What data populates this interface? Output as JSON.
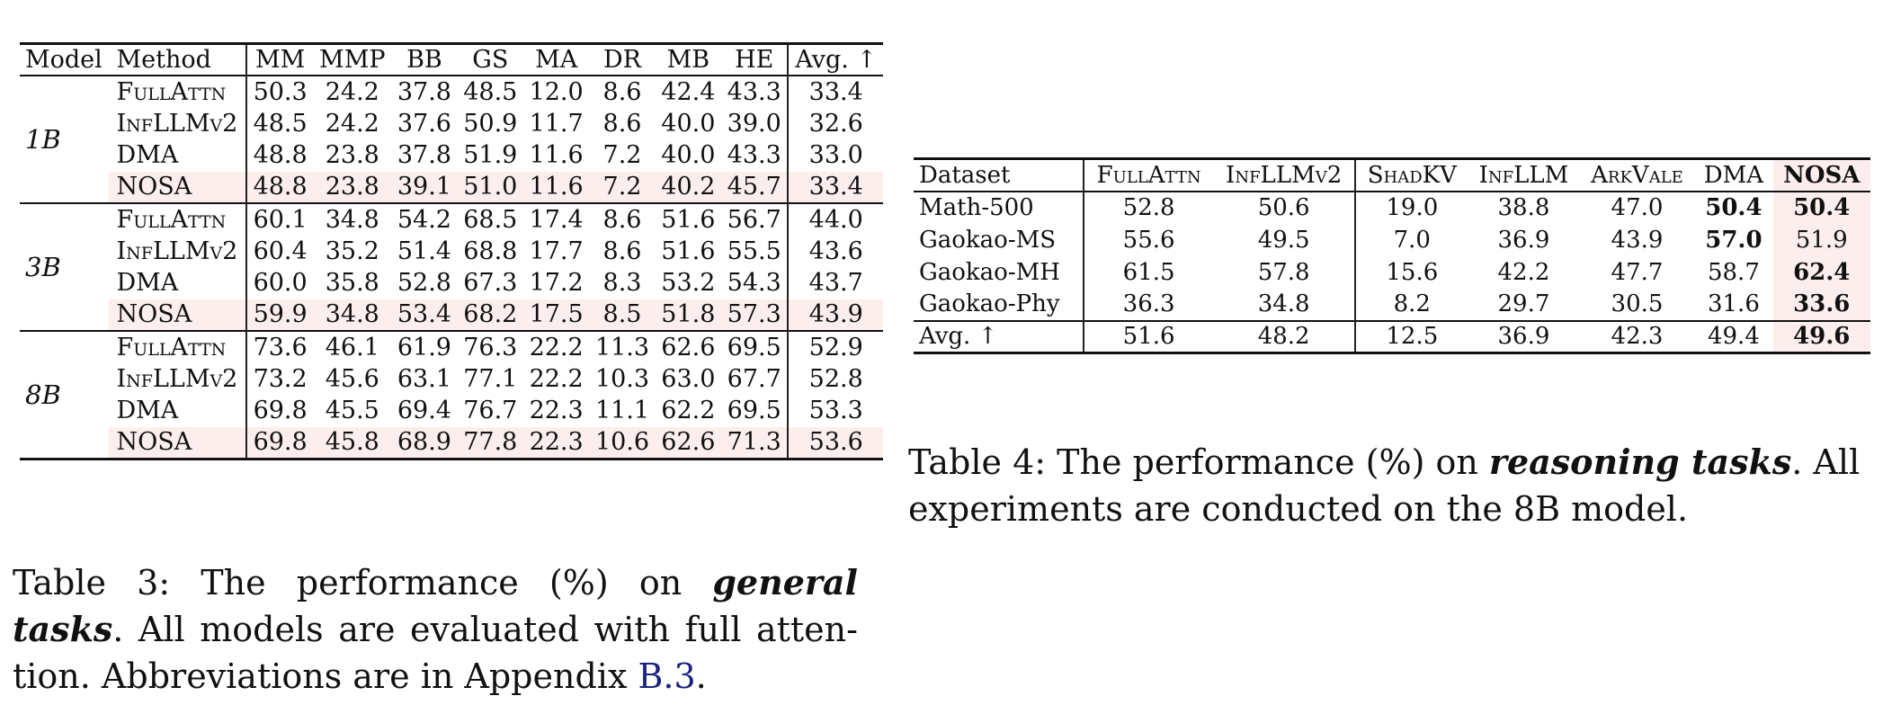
{
  "table3": {
    "headers": {
      "model": "Model",
      "method": "Method",
      "cols": [
        "MM",
        "MMP",
        "BB",
        "GS",
        "MA",
        "DR",
        "MB",
        "HE"
      ],
      "avg": "Avg. ↑"
    },
    "groups": [
      {
        "model": "1B",
        "rows": [
          {
            "method": "FullAttn",
            "values": [
              "50.3",
              "24.2",
              "37.8",
              "48.5",
              "12.0",
              "8.6",
              "42.4",
              "43.3"
            ],
            "avg": "33.4"
          },
          {
            "method": "InfLLMv2",
            "values": [
              "48.5",
              "24.2",
              "37.6",
              "50.9",
              "11.7",
              "8.6",
              "40.0",
              "39.0"
            ],
            "avg": "32.6"
          },
          {
            "method": "DMA",
            "values": [
              "48.8",
              "23.8",
              "37.8",
              "51.9",
              "11.6",
              "7.2",
              "40.0",
              "43.3"
            ],
            "avg": "33.0"
          },
          {
            "method": "NOSA",
            "values": [
              "48.8",
              "23.8",
              "39.1",
              "51.0",
              "11.6",
              "7.2",
              "40.2",
              "45.7"
            ],
            "avg": "33.4"
          }
        ]
      },
      {
        "model": "3B",
        "rows": [
          {
            "method": "FullAttn",
            "values": [
              "60.1",
              "34.8",
              "54.2",
              "68.5",
              "17.4",
              "8.6",
              "51.6",
              "56.7"
            ],
            "avg": "44.0"
          },
          {
            "method": "InfLLMv2",
            "values": [
              "60.4",
              "35.2",
              "51.4",
              "68.8",
              "17.7",
              "8.6",
              "51.6",
              "55.5"
            ],
            "avg": "43.6"
          },
          {
            "method": "DMA",
            "values": [
              "60.0",
              "35.8",
              "52.8",
              "67.3",
              "17.2",
              "8.3",
              "53.2",
              "54.3"
            ],
            "avg": "43.7"
          },
          {
            "method": "NOSA",
            "values": [
              "59.9",
              "34.8",
              "53.4",
              "68.2",
              "17.5",
              "8.5",
              "51.8",
              "57.3"
            ],
            "avg": "43.9"
          }
        ]
      },
      {
        "model": "8B",
        "rows": [
          {
            "method": "FullAttn",
            "values": [
              "73.6",
              "46.1",
              "61.9",
              "76.3",
              "22.2",
              "11.3",
              "62.6",
              "69.5"
            ],
            "avg": "52.9"
          },
          {
            "method": "InfLLMv2",
            "values": [
              "73.2",
              "45.6",
              "63.1",
              "77.1",
              "22.2",
              "10.3",
              "63.0",
              "67.7"
            ],
            "avg": "52.8"
          },
          {
            "method": "DMA",
            "values": [
              "69.8",
              "45.5",
              "69.4",
              "76.7",
              "22.3",
              "11.1",
              "62.2",
              "69.5"
            ],
            "avg": "53.3"
          },
          {
            "method": "NOSA",
            "values": [
              "69.8",
              "45.8",
              "68.9",
              "77.8",
              "22.3",
              "10.6",
              "62.6",
              "71.3"
            ],
            "avg": "53.6"
          }
        ]
      }
    ],
    "caption": {
      "prefix": "Table 3:  The performance (%) on ",
      "emph1": "general",
      "emph2": "tasks",
      "middle": ". All models are evaluated with full atten-tion. Abbreviations are in Appendix ",
      "link": "B.3",
      "suffix": "."
    }
  },
  "table4": {
    "headers": {
      "dataset": "Dataset",
      "cols": [
        "FullAttn",
        "InfLLMv2",
        "ShadKV",
        "InfLLM",
        "ArkVale",
        "DMA",
        "NOSA"
      ]
    },
    "rows": [
      {
        "dataset": "Math-500",
        "values": [
          "52.8",
          "50.6",
          "19.0",
          "38.8",
          "47.0",
          "50.4",
          "50.4"
        ],
        "bold": [
          5,
          6
        ]
      },
      {
        "dataset": "Gaokao-MS",
        "values": [
          "55.6",
          "49.5",
          "7.0",
          "36.9",
          "43.9",
          "57.0",
          "51.9"
        ],
        "bold": [
          5
        ]
      },
      {
        "dataset": "Gaokao-MH",
        "values": [
          "61.5",
          "57.8",
          "15.6",
          "42.2",
          "47.7",
          "58.7",
          "62.4"
        ],
        "bold": [
          6
        ]
      },
      {
        "dataset": "Gaokao-Phy",
        "values": [
          "36.3",
          "34.8",
          "8.2",
          "29.7",
          "30.5",
          "31.6",
          "33.6"
        ],
        "bold": [
          6
        ]
      }
    ],
    "avg_row": {
      "dataset": "Avg. ↑",
      "values": [
        "51.6",
        "48.2",
        "12.5",
        "36.9",
        "42.3",
        "49.4",
        "49.6"
      ],
      "bold": [
        6
      ]
    },
    "caption": {
      "prefix": "Table 4: The performance (%) on ",
      "emph": "reasoning tasks",
      "suffix": ". All experiments are conducted on the 8B model."
    }
  }
}
